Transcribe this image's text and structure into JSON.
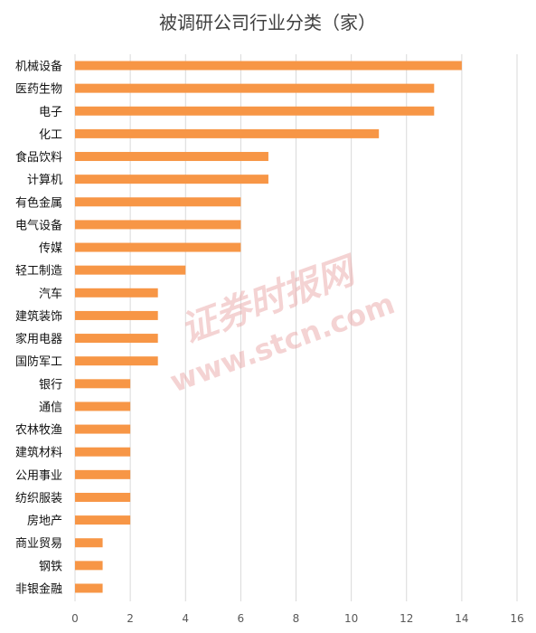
{
  "chart_data": {
    "type": "bar",
    "orientation": "horizontal",
    "title": "被调研公司行业分类（家）",
    "categories": [
      "机械设备",
      "医药生物",
      "电子",
      "化工",
      "食品饮料",
      "计算机",
      "有色金属",
      "电气设备",
      "传媒",
      "轻工制造",
      "汽车",
      "建筑装饰",
      "家用电器",
      "国防军工",
      "银行",
      "通信",
      "农林牧渔",
      "建筑材料",
      "公用事业",
      "纺织服装",
      "房地产",
      "商业贸易",
      "钢铁",
      "非银金融"
    ],
    "values": [
      14,
      13,
      13,
      11,
      7,
      7,
      6,
      6,
      6,
      4,
      3,
      3,
      3,
      3,
      2,
      2,
      2,
      2,
      2,
      2,
      2,
      1,
      1,
      1
    ],
    "xlim": [
      0,
      16
    ],
    "xticks": [
      0,
      2,
      4,
      6,
      8,
      10,
      12,
      14,
      16
    ],
    "grid": true,
    "legend": "none",
    "bar_color": "#f79646"
  },
  "watermark": {
    "line1": "证券时报网",
    "line2": "www.stcn.com"
  }
}
